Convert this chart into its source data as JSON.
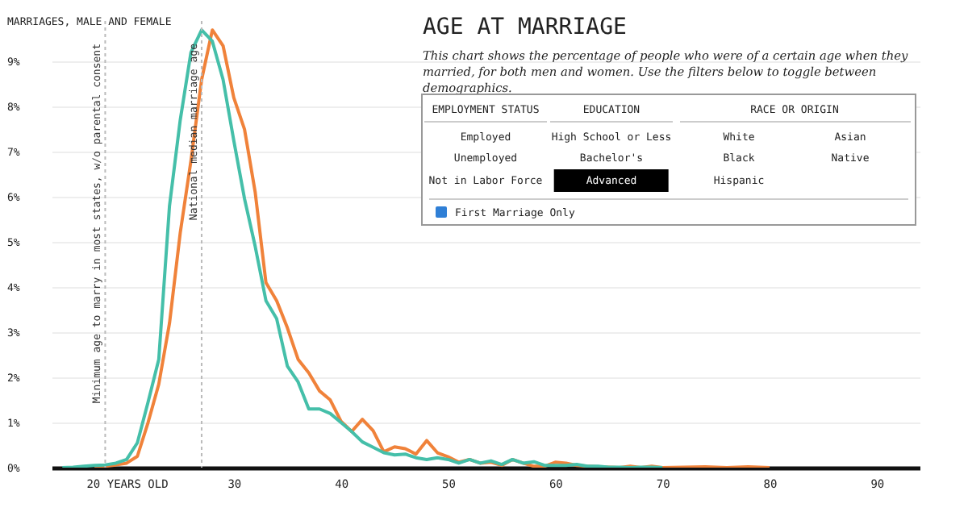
{
  "chart_data": {
    "type": "line",
    "title": "AGE AT MARRIAGE",
    "subtitle": "This chart shows the percentage of people who were of a certain age when they married, for both men and women. Use the filters below to toggle between demographics.",
    "ylabel": "MARRIAGES, MALE AND FEMALE",
    "xlim": [
      13,
      94
    ],
    "xticks": [
      {
        "value": 20,
        "label": "20 YEARS OLD"
      },
      30,
      40,
      50,
      60,
      70,
      80,
      90
    ],
    "ylim": [
      0,
      9.9
    ],
    "yticks": [
      {
        "value": 0,
        "label": "0%"
      },
      {
        "value": 1,
        "label": "1%"
      },
      {
        "value": 2,
        "label": "2%"
      },
      {
        "value": 3,
        "label": "3%"
      },
      {
        "value": 4,
        "label": "4%"
      },
      {
        "value": 5,
        "label": "5%"
      },
      {
        "value": 6,
        "label": "6%"
      },
      {
        "value": 7,
        "label": "7%"
      },
      {
        "value": 8,
        "label": "8%"
      },
      {
        "value": 9,
        "label": "9%"
      }
    ],
    "grid": "y",
    "series": [
      {
        "color": "#f0823a",
        "x": [
          17,
          18,
          19,
          20,
          21,
          22,
          23,
          24,
          25,
          26,
          27,
          28,
          29,
          30,
          31,
          32,
          33,
          34,
          35,
          36,
          37,
          38,
          39,
          40,
          41,
          42,
          43,
          44,
          45,
          46,
          47,
          48,
          49,
          50,
          51,
          52,
          53,
          54,
          55,
          56,
          57,
          58,
          59,
          60,
          61,
          62,
          63,
          64,
          65,
          66,
          67,
          68,
          69,
          70,
          72,
          74,
          76,
          78,
          80
        ],
        "values": [
          0,
          0.03,
          0.06,
          0.1,
          0.25,
          1.0,
          1.85,
          3.2,
          5.2,
          6.8,
          8.6,
          9.7,
          9.35,
          8.2,
          7.5,
          6.1,
          4.1,
          3.7,
          3.1,
          2.4,
          2.1,
          1.7,
          1.5,
          1.03,
          0.8,
          1.07,
          0.82,
          0.35,
          0.46,
          0.42,
          0.3,
          0.6,
          0.33,
          0.24,
          0.12,
          0.18,
          0.1,
          0.12,
          0.05,
          0.18,
          0.1,
          0.03,
          0.03,
          0.12,
          0.1,
          0.05,
          0.03,
          0.02,
          0.01,
          0,
          0.03,
          0,
          0.03,
          0,
          0.01,
          0.02,
          0,
          0.02,
          0
        ]
      },
      {
        "color": "#45bfa9",
        "x": [
          14,
          15,
          16,
          17,
          18,
          19,
          20,
          21,
          22,
          23,
          24,
          25,
          26,
          27,
          28,
          29,
          30,
          31,
          32,
          33,
          34,
          35,
          36,
          37,
          38,
          39,
          40,
          41,
          42,
          43,
          44,
          45,
          46,
          47,
          48,
          49,
          50,
          51,
          52,
          53,
          54,
          55,
          56,
          57,
          58,
          59,
          60,
          61,
          62,
          63,
          64,
          65,
          66,
          67,
          68,
          69,
          70
        ],
        "values": [
          0,
          0.01,
          0.03,
          0.05,
          0.06,
          0.1,
          0.18,
          0.55,
          1.45,
          2.4,
          5.8,
          7.7,
          9.2,
          9.7,
          9.45,
          8.6,
          7.25,
          5.96,
          4.9,
          3.7,
          3.3,
          2.25,
          1.9,
          1.3,
          1.3,
          1.2,
          1.0,
          0.8,
          0.57,
          0.45,
          0.33,
          0.28,
          0.3,
          0.22,
          0.18,
          0.22,
          0.18,
          0.1,
          0.18,
          0.1,
          0.15,
          0.07,
          0.18,
          0.1,
          0.13,
          0.05,
          0.05,
          0.05,
          0.07,
          0.03,
          0.03,
          0.01,
          0.01,
          0,
          0.01,
          0.01,
          0
        ]
      }
    ],
    "ref_lines": [
      {
        "axis": "x",
        "value": 18,
        "label": "Minimum age to marry in most states, w/o parental consent",
        "line_style": "dotted"
      },
      {
        "axis": "x",
        "value": 27,
        "label": "National median marriage age",
        "line_style": "dotted"
      }
    ],
    "annotations": [
      "EMPLOYMENT STATUS",
      "EDUCATION",
      "RACE OR ORIGIN",
      "Employed",
      "High School or Less",
      "White",
      "Asian",
      "Unemployed",
      "Bachelor's",
      "Black",
      "Native",
      "Not in Labor Force",
      "Advanced",
      "Hispanic",
      "First Marriage Only"
    ]
  }
}
